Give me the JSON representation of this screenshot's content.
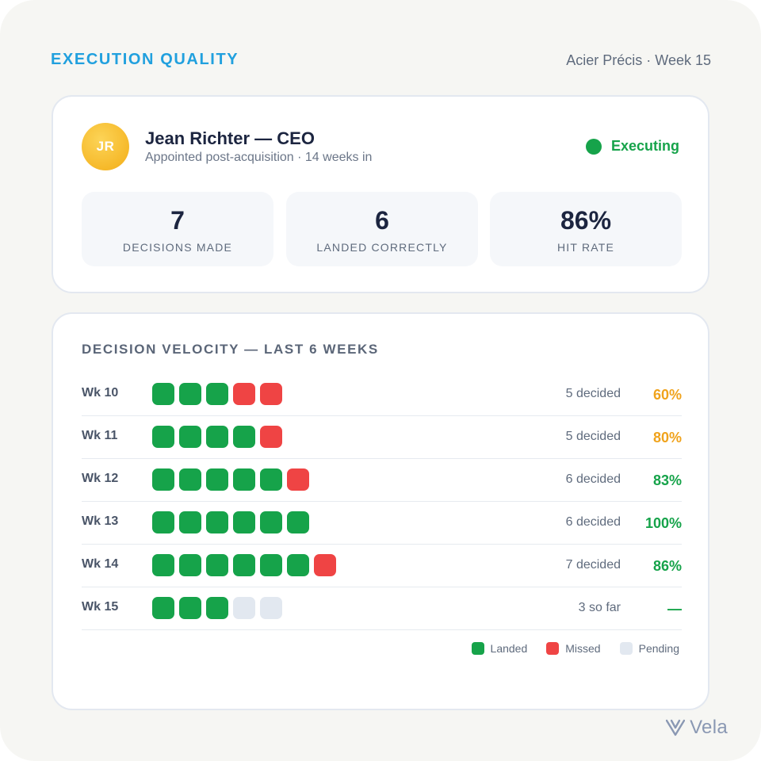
{
  "header": {
    "section_title": "EXECUTION QUALITY",
    "meta": "Acier Précis · Week 15"
  },
  "profile": {
    "initials": "JR",
    "name": "Jean Richter — CEO",
    "subtitle": "Appointed post-acquisition · 14 weeks in",
    "status": {
      "label": "Executing",
      "color": "#16a34a"
    }
  },
  "stats": [
    {
      "value": "7",
      "label": "DECISIONS MADE"
    },
    {
      "value": "6",
      "label": "LANDED CORRECTLY"
    },
    {
      "value": "86%",
      "label": "HIT RATE"
    }
  ],
  "velocity": {
    "title": "DECISION VELOCITY — LAST 6 WEEKS",
    "rows": [
      {
        "week": "Wk 10",
        "outcomes": [
          "landed",
          "landed",
          "landed",
          "missed",
          "missed"
        ],
        "decided": "5 decided",
        "rate": "60%",
        "rate_tone": "amber"
      },
      {
        "week": "Wk 11",
        "outcomes": [
          "landed",
          "landed",
          "landed",
          "landed",
          "missed"
        ],
        "decided": "5 decided",
        "rate": "80%",
        "rate_tone": "amber"
      },
      {
        "week": "Wk 12",
        "outcomes": [
          "landed",
          "landed",
          "landed",
          "landed",
          "landed",
          "missed"
        ],
        "decided": "6 decided",
        "rate": "83%",
        "rate_tone": "green"
      },
      {
        "week": "Wk 13",
        "outcomes": [
          "landed",
          "landed",
          "landed",
          "landed",
          "landed",
          "landed"
        ],
        "decided": "6 decided",
        "rate": "100%",
        "rate_tone": "green"
      },
      {
        "week": "Wk 14",
        "outcomes": [
          "landed",
          "landed",
          "landed",
          "landed",
          "landed",
          "landed",
          "missed"
        ],
        "decided": "7 decided",
        "rate": "86%",
        "rate_tone": "green"
      },
      {
        "week": "Wk 15",
        "outcomes": [
          "landed",
          "landed",
          "landed",
          "pending",
          "pending"
        ],
        "decided": "3 so far",
        "rate": "—",
        "rate_tone": "green"
      }
    ],
    "legend": [
      {
        "key": "landed",
        "label": "Landed"
      },
      {
        "key": "missed",
        "label": "Missed"
      },
      {
        "key": "pending",
        "label": "Pending"
      }
    ]
  },
  "colors": {
    "landed": "#16a34a",
    "missed": "#ef4444",
    "pending": "#e2e8f0",
    "amber": "#f0a31c",
    "accent": "#21a0de"
  },
  "brand": {
    "name": "Vela",
    "icon": "vela-logo-icon"
  }
}
